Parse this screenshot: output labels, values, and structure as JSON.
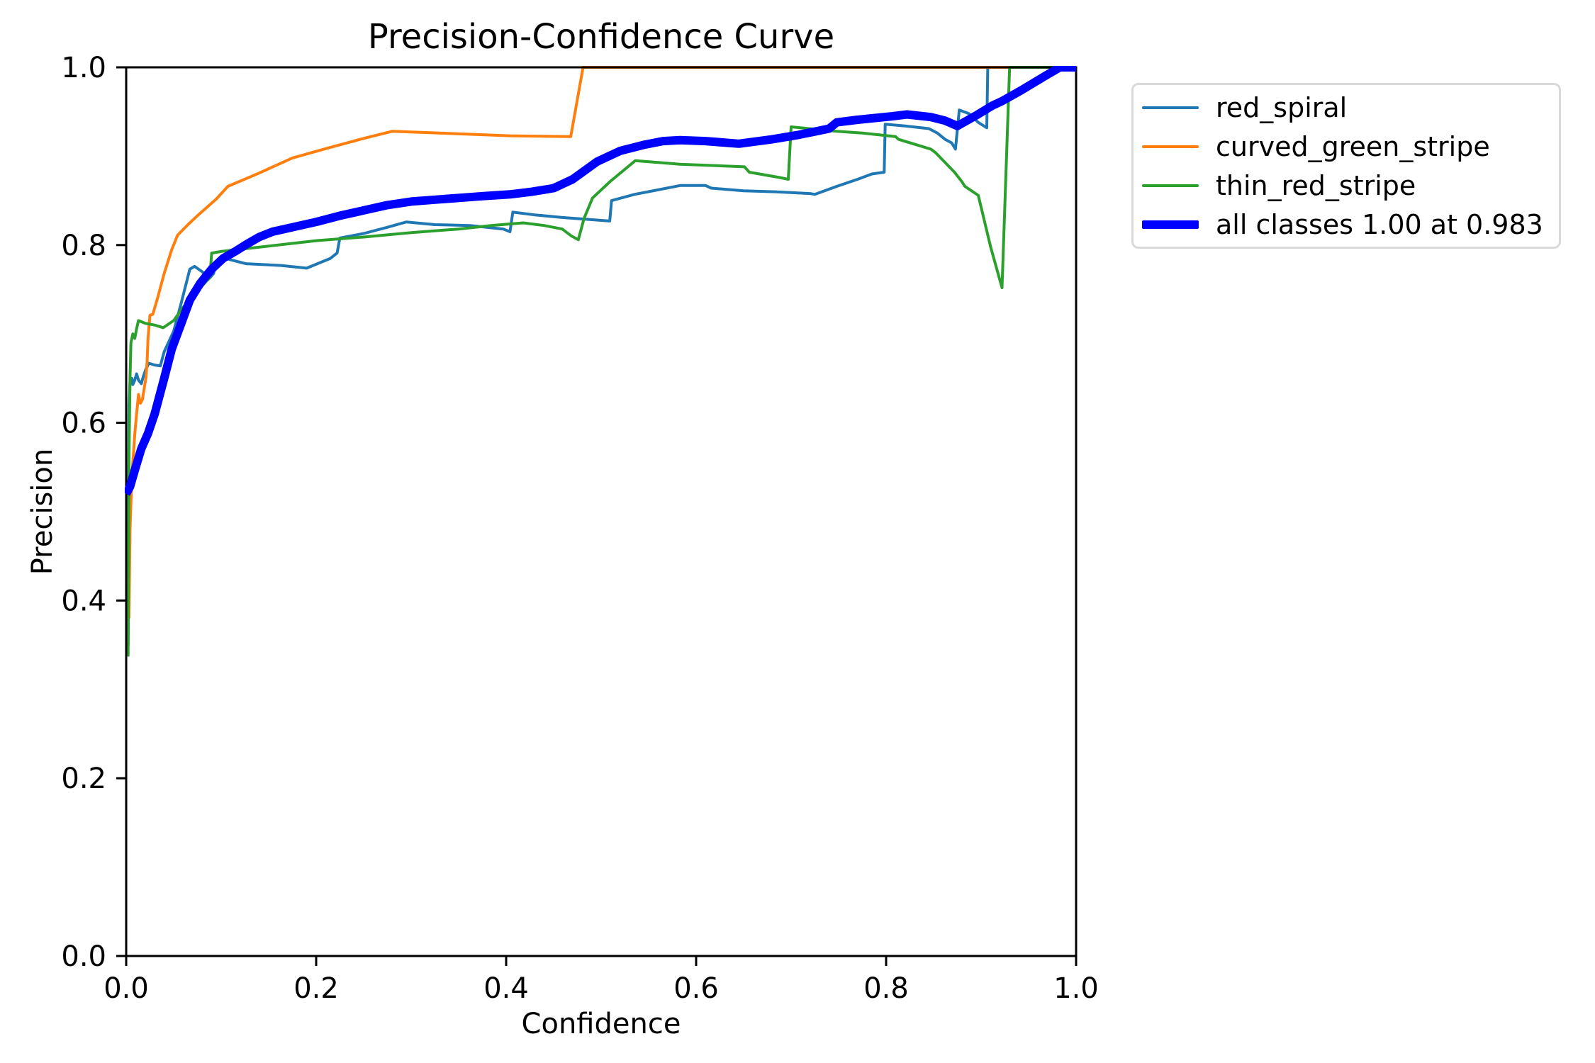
{
  "figure": {
    "background": "#ffffff"
  },
  "chart_data": {
    "type": "line",
    "title": "Precision-Confidence Curve",
    "xlabel": "Confidence",
    "ylabel": "Precision",
    "xlim": [
      0.0,
      1.0
    ],
    "ylim": [
      0.0,
      1.0
    ],
    "xticks": [
      0.0,
      0.2,
      0.4,
      0.6,
      0.8,
      1.0
    ],
    "yticks": [
      0.0,
      0.2,
      0.4,
      0.6,
      0.8,
      1.0
    ],
    "grid": false,
    "axis_color": "#000000",
    "legend": {
      "position": "outside-right",
      "entries": [
        {
          "label": "red_spiral",
          "color": "#1f77b4",
          "linewidth": 4
        },
        {
          "label": "curved_green_stripe",
          "color": "#ff7f0e",
          "linewidth": 4
        },
        {
          "label": "thin_red_stripe",
          "color": "#2ca02c",
          "linewidth": 4
        },
        {
          "label": "all classes 1.00 at 0.983",
          "color": "#0000ff",
          "linewidth": 12
        }
      ]
    },
    "series": [
      {
        "name": "red_spiral",
        "color": "#1f77b4",
        "linewidth": 4,
        "points": [
          [
            0.002,
            0.35
          ],
          [
            0.003,
            0.62
          ],
          [
            0.004,
            0.645
          ],
          [
            0.006,
            0.65
          ],
          [
            0.007,
            0.643
          ],
          [
            0.009,
            0.648
          ],
          [
            0.011,
            0.655
          ],
          [
            0.013,
            0.648
          ],
          [
            0.016,
            0.644
          ],
          [
            0.018,
            0.652
          ],
          [
            0.021,
            0.661
          ],
          [
            0.024,
            0.667
          ],
          [
            0.03,
            0.665
          ],
          [
            0.036,
            0.664
          ],
          [
            0.04,
            0.68
          ],
          [
            0.05,
            0.703
          ],
          [
            0.058,
            0.735
          ],
          [
            0.067,
            0.773
          ],
          [
            0.072,
            0.776
          ],
          [
            0.08,
            0.77
          ],
          [
            0.088,
            0.763
          ],
          [
            0.092,
            0.768
          ],
          [
            0.095,
            0.781
          ],
          [
            0.104,
            0.785
          ],
          [
            0.126,
            0.779
          ],
          [
            0.163,
            0.777
          ],
          [
            0.19,
            0.774
          ],
          [
            0.215,
            0.785
          ],
          [
            0.222,
            0.791
          ],
          [
            0.225,
            0.808
          ],
          [
            0.25,
            0.813
          ],
          [
            0.275,
            0.82
          ],
          [
            0.295,
            0.826
          ],
          [
            0.325,
            0.823
          ],
          [
            0.362,
            0.822
          ],
          [
            0.397,
            0.818
          ],
          [
            0.404,
            0.815
          ],
          [
            0.407,
            0.837
          ],
          [
            0.43,
            0.834
          ],
          [
            0.459,
            0.831
          ],
          [
            0.509,
            0.827
          ],
          [
            0.511,
            0.85
          ],
          [
            0.535,
            0.857
          ],
          [
            0.559,
            0.862
          ],
          [
            0.583,
            0.867
          ],
          [
            0.61,
            0.867
          ],
          [
            0.616,
            0.864
          ],
          [
            0.65,
            0.861
          ],
          [
            0.683,
            0.86
          ],
          [
            0.72,
            0.858
          ],
          [
            0.725,
            0.857
          ],
          [
            0.748,
            0.866
          ],
          [
            0.77,
            0.874
          ],
          [
            0.785,
            0.88
          ],
          [
            0.798,
            0.882
          ],
          [
            0.799,
            0.936
          ],
          [
            0.82,
            0.934
          ],
          [
            0.845,
            0.931
          ],
          [
            0.854,
            0.926
          ],
          [
            0.862,
            0.919
          ],
          [
            0.869,
            0.915
          ],
          [
            0.873,
            0.908
          ],
          [
            0.875,
            0.93
          ],
          [
            0.877,
            0.952
          ],
          [
            0.887,
            0.948
          ],
          [
            0.897,
            0.938
          ],
          [
            0.906,
            0.932
          ],
          [
            0.907,
            1.0
          ],
          [
            1.0,
            1.0
          ]
        ]
      },
      {
        "name": "curved_green_stripe",
        "color": "#ff7f0e",
        "linewidth": 4,
        "points": [
          [
            0.003,
            0.38
          ],
          [
            0.004,
            0.48
          ],
          [
            0.006,
            0.54
          ],
          [
            0.008,
            0.57
          ],
          [
            0.009,
            0.587
          ],
          [
            0.011,
            0.61
          ],
          [
            0.013,
            0.632
          ],
          [
            0.015,
            0.622
          ],
          [
            0.017,
            0.626
          ],
          [
            0.019,
            0.639
          ],
          [
            0.021,
            0.652
          ],
          [
            0.022,
            0.669
          ],
          [
            0.023,
            0.695
          ],
          [
            0.025,
            0.721
          ],
          [
            0.028,
            0.722
          ],
          [
            0.033,
            0.74
          ],
          [
            0.04,
            0.768
          ],
          [
            0.048,
            0.795
          ],
          [
            0.054,
            0.811
          ],
          [
            0.065,
            0.823
          ],
          [
            0.076,
            0.834
          ],
          [
            0.095,
            0.852
          ],
          [
            0.107,
            0.866
          ],
          [
            0.14,
            0.881
          ],
          [
            0.175,
            0.898
          ],
          [
            0.212,
            0.909
          ],
          [
            0.25,
            0.92
          ],
          [
            0.28,
            0.928
          ],
          [
            0.33,
            0.926
          ],
          [
            0.404,
            0.923
          ],
          [
            0.468,
            0.922
          ],
          [
            0.481,
            1.0
          ],
          [
            1.0,
            1.0
          ]
        ]
      },
      {
        "name": "thin_red_stripe",
        "color": "#2ca02c",
        "linewidth": 4,
        "points": [
          [
            0.002,
            0.337
          ],
          [
            0.003,
            0.56
          ],
          [
            0.004,
            0.65
          ],
          [
            0.005,
            0.69
          ],
          [
            0.007,
            0.7
          ],
          [
            0.009,
            0.695
          ],
          [
            0.011,
            0.706
          ],
          [
            0.013,
            0.715
          ],
          [
            0.02,
            0.712
          ],
          [
            0.03,
            0.71
          ],
          [
            0.039,
            0.707
          ],
          [
            0.05,
            0.715
          ],
          [
            0.06,
            0.73
          ],
          [
            0.07,
            0.743
          ],
          [
            0.076,
            0.749
          ],
          [
            0.084,
            0.759
          ],
          [
            0.088,
            0.763
          ],
          [
            0.09,
            0.791
          ],
          [
            0.101,
            0.793
          ],
          [
            0.151,
            0.799
          ],
          [
            0.201,
            0.805
          ],
          [
            0.25,
            0.809
          ],
          [
            0.3,
            0.814
          ],
          [
            0.35,
            0.818
          ],
          [
            0.384,
            0.822
          ],
          [
            0.418,
            0.825
          ],
          [
            0.44,
            0.822
          ],
          [
            0.459,
            0.818
          ],
          [
            0.469,
            0.81
          ],
          [
            0.476,
            0.806
          ],
          [
            0.482,
            0.83
          ],
          [
            0.491,
            0.853
          ],
          [
            0.51,
            0.872
          ],
          [
            0.536,
            0.895
          ],
          [
            0.56,
            0.893
          ],
          [
            0.583,
            0.891
          ],
          [
            0.651,
            0.888
          ],
          [
            0.656,
            0.882
          ],
          [
            0.688,
            0.876
          ],
          [
            0.697,
            0.874
          ],
          [
            0.7,
            0.933
          ],
          [
            0.748,
            0.928
          ],
          [
            0.775,
            0.926
          ],
          [
            0.81,
            0.922
          ],
          [
            0.813,
            0.919
          ],
          [
            0.847,
            0.908
          ],
          [
            0.852,
            0.904
          ],
          [
            0.872,
            0.882
          ],
          [
            0.88,
            0.871
          ],
          [
            0.883,
            0.866
          ],
          [
            0.897,
            0.856
          ],
          [
            0.91,
            0.798
          ],
          [
            0.922,
            0.752
          ],
          [
            0.93,
            1.0
          ],
          [
            1.0,
            1.0
          ]
        ]
      },
      {
        "name": "all classes",
        "color": "#0000ff",
        "linewidth": 12,
        "points": [
          [
            0.0,
            0.52
          ],
          [
            0.004,
            0.528
          ],
          [
            0.01,
            0.55
          ],
          [
            0.016,
            0.571
          ],
          [
            0.023,
            0.588
          ],
          [
            0.03,
            0.61
          ],
          [
            0.04,
            0.65
          ],
          [
            0.048,
            0.683
          ],
          [
            0.057,
            0.709
          ],
          [
            0.067,
            0.738
          ],
          [
            0.078,
            0.757
          ],
          [
            0.09,
            0.773
          ],
          [
            0.102,
            0.785
          ],
          [
            0.115,
            0.793
          ],
          [
            0.127,
            0.801
          ],
          [
            0.14,
            0.809
          ],
          [
            0.154,
            0.815
          ],
          [
            0.175,
            0.82
          ],
          [
            0.2,
            0.826
          ],
          [
            0.225,
            0.833
          ],
          [
            0.25,
            0.839
          ],
          [
            0.275,
            0.845
          ],
          [
            0.3,
            0.849
          ],
          [
            0.325,
            0.851
          ],
          [
            0.35,
            0.853
          ],
          [
            0.375,
            0.855
          ],
          [
            0.404,
            0.857
          ],
          [
            0.427,
            0.86
          ],
          [
            0.45,
            0.864
          ],
          [
            0.47,
            0.874
          ],
          [
            0.496,
            0.894
          ],
          [
            0.52,
            0.906
          ],
          [
            0.546,
            0.913
          ],
          [
            0.565,
            0.917
          ],
          [
            0.583,
            0.918
          ],
          [
            0.61,
            0.917
          ],
          [
            0.645,
            0.914
          ],
          [
            0.68,
            0.919
          ],
          [
            0.708,
            0.924
          ],
          [
            0.74,
            0.931
          ],
          [
            0.748,
            0.938
          ],
          [
            0.77,
            0.941
          ],
          [
            0.807,
            0.945
          ],
          [
            0.822,
            0.947
          ],
          [
            0.847,
            0.944
          ],
          [
            0.862,
            0.94
          ],
          [
            0.875,
            0.934
          ],
          [
            0.895,
            0.946
          ],
          [
            0.912,
            0.957
          ],
          [
            0.922,
            0.962
          ],
          [
            0.942,
            0.974
          ],
          [
            0.967,
            0.99
          ],
          [
            0.983,
            1.0
          ],
          [
            1.0,
            1.0
          ]
        ]
      }
    ],
    "annotation": {
      "all_classes_precision": "1.00",
      "all_classes_at_confidence": "0.983"
    }
  }
}
